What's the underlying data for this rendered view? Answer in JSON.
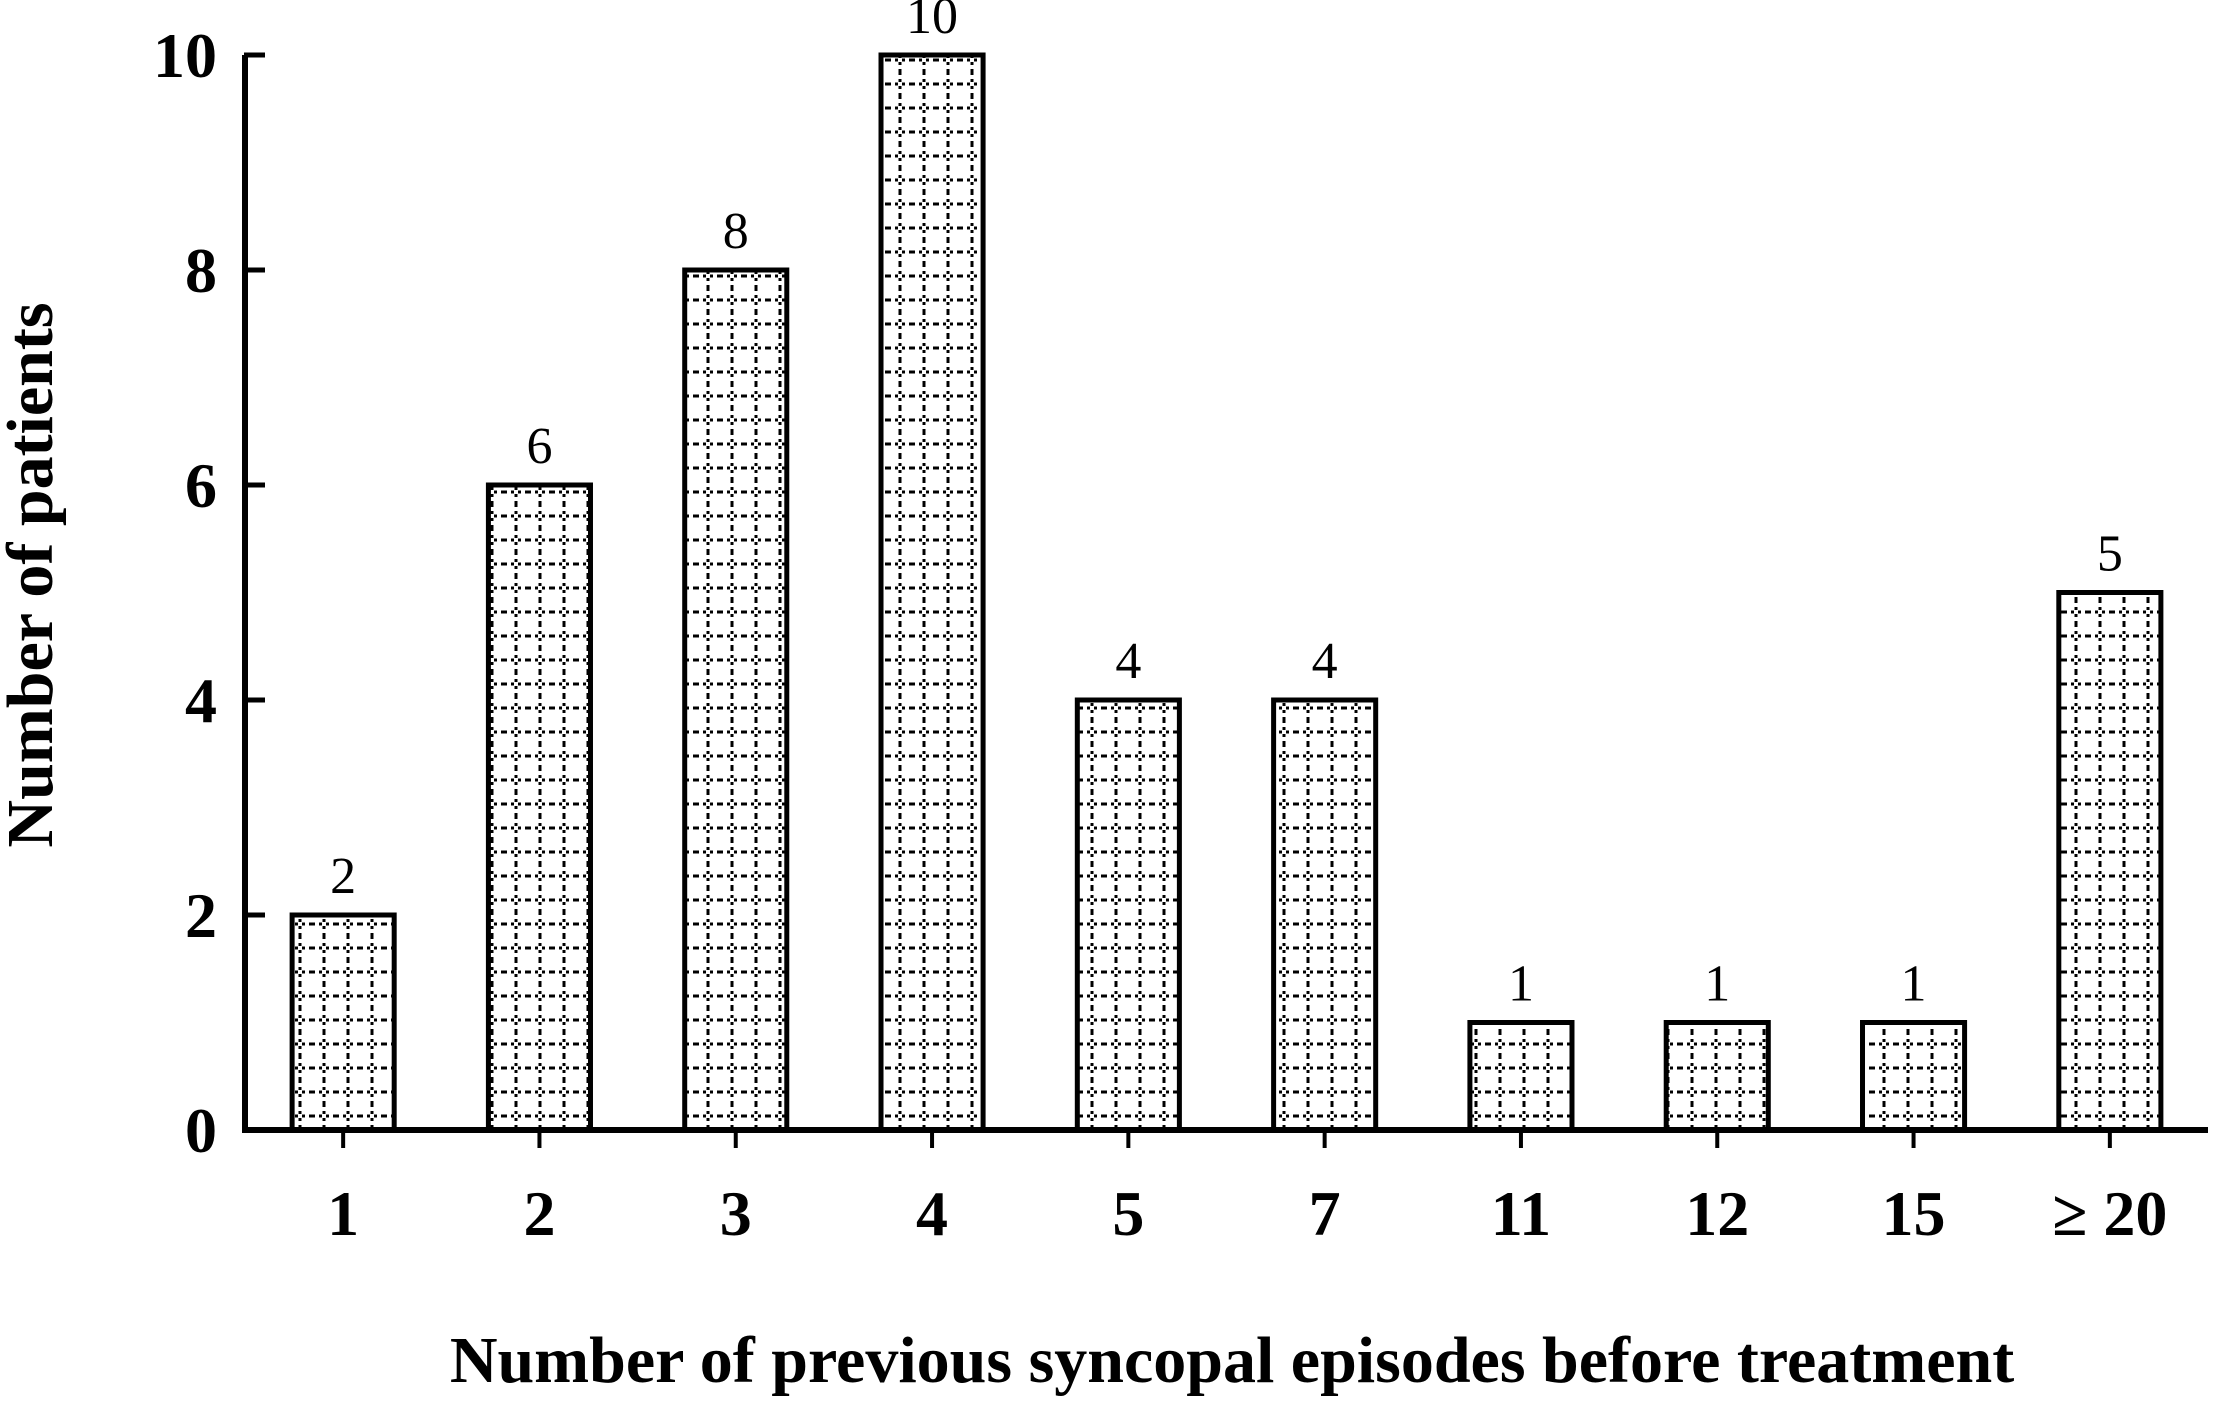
{
  "chart_data": {
    "type": "bar",
    "categories": [
      "1",
      "2",
      "3",
      "4",
      "5",
      "7",
      "11",
      "12",
      "15",
      "≥ 20"
    ],
    "values": [
      2,
      6,
      8,
      10,
      4,
      4,
      1,
      1,
      1,
      5
    ],
    "data_labels": [
      "2",
      "6",
      "8",
      "10",
      "4",
      "4",
      "1",
      "1",
      "1",
      "5"
    ],
    "xlabel": "Number of previous syncopal episodes before treatment",
    "ylabel": "Number of patients",
    "ylim": [
      0,
      10
    ],
    "yticks": [
      0,
      2,
      4,
      6,
      8,
      10
    ],
    "grid": false,
    "legend": "none",
    "bar_fill": "dotted-grid",
    "colors": {
      "ink": "#000000",
      "background": "#ffffff"
    }
  }
}
